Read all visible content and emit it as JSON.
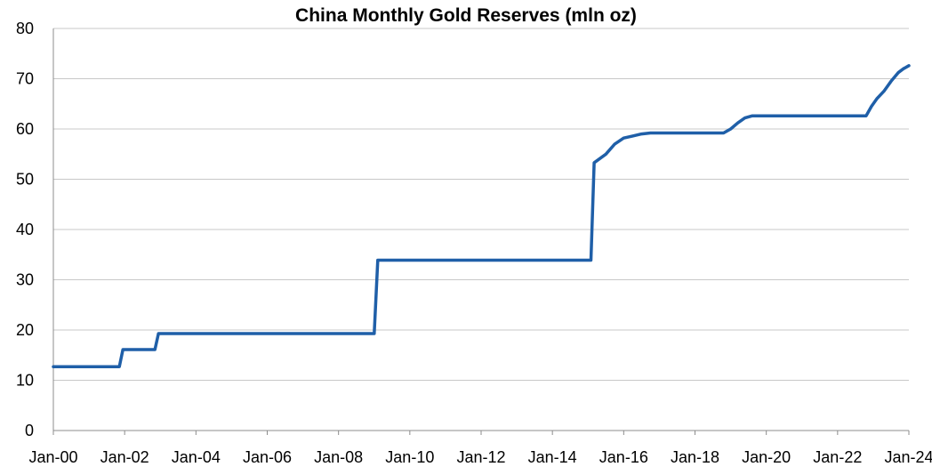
{
  "chart_data": {
    "type": "line",
    "title": "China Monthly Gold Reserves (mln oz)",
    "xlabel": "",
    "ylabel": "",
    "ylim": [
      0,
      80
    ],
    "yticks": [
      0,
      10,
      20,
      30,
      40,
      50,
      60,
      70,
      80
    ],
    "xlim": [
      "Jan-00",
      "Jan-24"
    ],
    "xticks": [
      "Jan-00",
      "Jan-02",
      "Jan-04",
      "Jan-06",
      "Jan-08",
      "Jan-10",
      "Jan-12",
      "Jan-14",
      "Jan-16",
      "Jan-18",
      "Jan-20",
      "Jan-22",
      "Jan-24"
    ],
    "grid": true,
    "series": [
      {
        "name": "China Monthly Gold Reserves",
        "color": "#1f5fa8",
        "x": [
          2000.0,
          2001.85,
          2001.95,
          2002.85,
          2002.95,
          2009.0,
          2009.1,
          2015.08,
          2015.17,
          2015.5,
          2015.75,
          2016.0,
          2016.25,
          2016.5,
          2016.75,
          2017.0,
          2018.8,
          2019.0,
          2019.2,
          2019.4,
          2019.6,
          2019.8,
          2020.0,
          2022.8,
          2022.95,
          2023.1,
          2023.3,
          2023.5,
          2023.7,
          2023.85,
          2024.0
        ],
        "values": [
          12.7,
          12.7,
          16.1,
          16.1,
          19.3,
          19.3,
          33.9,
          33.9,
          53.3,
          55.0,
          57.0,
          58.2,
          58.6,
          59.0,
          59.2,
          59.2,
          59.2,
          60.0,
          61.2,
          62.2,
          62.6,
          62.6,
          62.6,
          62.6,
          64.5,
          66.0,
          67.5,
          69.5,
          71.2,
          72.0,
          72.6
        ]
      }
    ]
  }
}
